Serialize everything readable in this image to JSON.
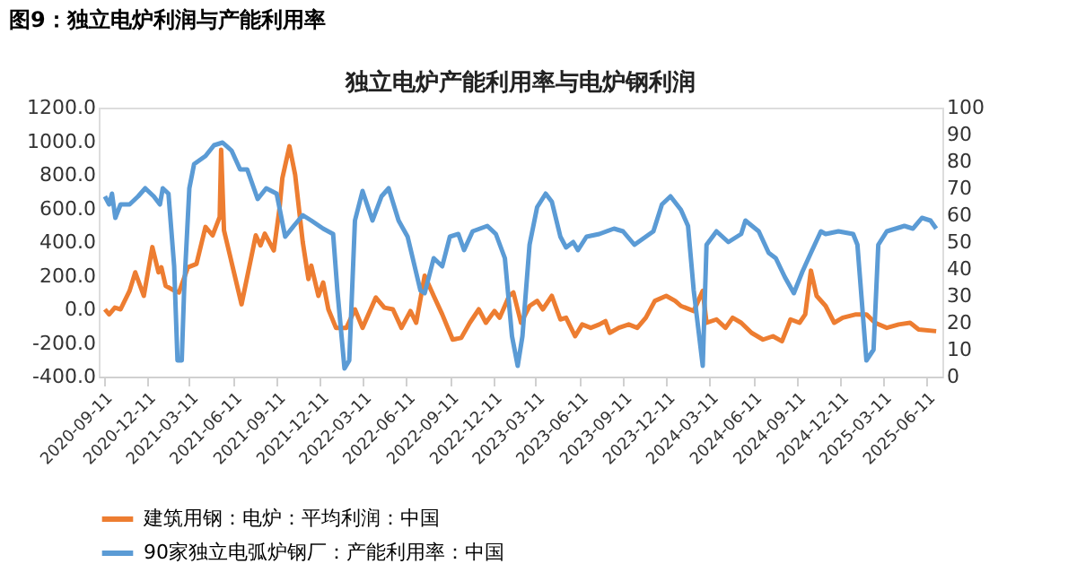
{
  "chart_data": {
    "type": "line",
    "title": "独立电炉产能利用率与电炉钢利润",
    "annotations": [
      "图9：独立电炉利润与产能利用率"
    ],
    "legend": "bottom",
    "marker": "none",
    "line_style": "solid",
    "xlim": [
      "2020-09-01",
      "2025-07-15"
    ],
    "xticks": [
      "2020-09-11",
      "2020-12-11",
      "2021-03-11",
      "2021-06-11",
      "2021-09-11",
      "2021-12-11",
      "2022-03-11",
      "2022-06-11",
      "2022-09-11",
      "2022-12-11",
      "2023-03-11",
      "2023-06-11",
      "2023-09-11",
      "2023-12-11",
      "2024-03-11",
      "2024-06-11",
      "2024-09-11",
      "2024-12-11",
      "2025-03-11",
      "2025-06-11"
    ],
    "ylim": [
      -400,
      1200
    ],
    "yticks": [
      {
        "value": -400,
        "label": "-400.0"
      },
      {
        "value": -200,
        "label": "-200.0"
      },
      {
        "value": 0,
        "label": "0.0"
      },
      {
        "value": 200,
        "label": "200.0"
      },
      {
        "value": 400,
        "label": "400.0"
      },
      {
        "value": 600,
        "label": "600.0"
      },
      {
        "value": 800,
        "label": "800.0"
      },
      {
        "value": 1000,
        "label": "1000.0"
      },
      {
        "value": 1200,
        "label": "1200.0"
      }
    ],
    "y2lim": [
      0,
      100
    ],
    "y2ticks": [
      0,
      10,
      20,
      30,
      40,
      50,
      60,
      70,
      80,
      90,
      100
    ],
    "series": [
      {
        "name": "建筑用钢：电炉：平均利润：中国",
        "color": "#ed7d31",
        "axis": "y",
        "x": [
          "2020-09-14",
          "2020-09-23",
          "2020-10-05",
          "2020-10-17",
          "2020-11-05",
          "2020-11-17",
          "2020-12-05",
          "2020-12-23",
          "2021-01-05",
          "2021-01-11",
          "2021-01-20",
          "2021-02-08",
          "2021-02-17",
          "2021-03-08",
          "2021-03-26",
          "2021-04-14",
          "2021-04-29",
          "2021-05-14",
          "2021-05-17",
          "2021-05-23",
          "2021-06-29",
          "2021-07-29",
          "2021-08-08",
          "2021-08-17",
          "2021-09-05",
          "2021-09-17",
          "2021-09-23",
          "2021-10-08",
          "2021-10-20",
          "2021-11-05",
          "2021-11-17",
          "2021-11-23",
          "2021-12-08",
          "2021-12-18",
          "2021-12-29",
          "2022-01-14",
          "2022-02-05",
          "2022-02-23",
          "2022-03-11",
          "2022-04-08",
          "2022-04-26",
          "2022-05-14",
          "2022-06-01",
          "2022-06-20",
          "2022-07-02",
          "2022-07-20",
          "2022-08-08",
          "2022-08-26",
          "2022-09-17",
          "2022-10-05",
          "2022-10-23",
          "2022-11-11",
          "2022-11-26",
          "2022-12-14",
          "2022-12-25",
          "2023-01-14",
          "2023-01-23",
          "2023-02-08",
          "2023-02-26",
          "2023-03-14",
          "2023-03-26",
          "2023-04-14",
          "2023-05-02",
          "2023-05-14",
          "2023-06-02",
          "2023-06-17",
          "2023-07-05",
          "2023-07-23",
          "2023-08-05",
          "2023-08-14",
          "2023-09-02",
          "2023-09-23",
          "2023-10-11",
          "2023-10-29",
          "2023-11-17",
          "2023-12-11",
          "2023-12-30",
          "2024-01-11",
          "2024-02-07",
          "2024-02-26",
          "2024-03-05",
          "2024-03-26",
          "2024-04-14",
          "2024-04-29",
          "2024-05-17",
          "2024-06-08",
          "2024-07-02",
          "2024-07-23",
          "2024-08-11",
          "2024-08-29",
          "2024-09-17",
          "2024-09-29",
          "2024-10-11",
          "2024-10-23",
          "2024-11-11",
          "2024-11-29",
          "2024-12-17",
          "2025-01-14",
          "2025-02-05",
          "2025-02-23",
          "2025-03-20",
          "2025-04-14",
          "2025-05-08",
          "2025-05-26",
          "2025-07-02"
        ],
        "values": [
          0,
          -30,
          10,
          0,
          110,
          220,
          80,
          370,
          220,
          250,
          140,
          110,
          100,
          250,
          270,
          490,
          440,
          550,
          950,
          470,
          30,
          440,
          380,
          450,
          350,
          600,
          780,
          970,
          800,
          400,
          180,
          260,
          80,
          160,
          0,
          -110,
          -110,
          0,
          -110,
          70,
          10,
          0,
          -110,
          -10,
          -80,
          200,
          80,
          -30,
          -180,
          -170,
          -80,
          0,
          -80,
          -10,
          -50,
          80,
          100,
          -80,
          20,
          50,
          0,
          80,
          -60,
          -50,
          -160,
          -90,
          -110,
          -90,
          -70,
          -140,
          -110,
          -90,
          -110,
          -50,
          50,
          80,
          50,
          20,
          -10,
          110,
          -80,
          -60,
          -110,
          -50,
          -80,
          -140,
          -180,
          -160,
          -190,
          -60,
          -80,
          -30,
          230,
          80,
          20,
          -80,
          -50,
          -30,
          -30,
          -80,
          -110,
          -90,
          -80,
          -120,
          -130
        ]
      },
      {
        "name": "90家独立电弧炉钢厂：产能利用率：中国",
        "color": "#5b9bd5",
        "axis": "y2",
        "x": [
          "2020-09-14",
          "2020-09-23",
          "2020-09-29",
          "2020-10-06",
          "2020-10-17",
          "2020-11-05",
          "2020-11-23",
          "2020-12-08",
          "2020-12-26",
          "2021-01-08",
          "2021-01-14",
          "2021-01-26",
          "2021-02-07",
          "2021-02-14",
          "2021-02-23",
          "2021-02-28",
          "2021-03-11",
          "2021-03-21",
          "2021-04-14",
          "2021-05-02",
          "2021-05-20",
          "2021-06-08",
          "2021-06-26",
          "2021-07-11",
          "2021-08-02",
          "2021-08-20",
          "2021-09-11",
          "2021-09-29",
          "2021-10-17",
          "2021-11-05",
          "2021-11-23",
          "2021-12-18",
          "2022-01-08",
          "2022-01-17",
          "2022-02-01",
          "2022-02-11",
          "2022-02-23",
          "2022-03-11",
          "2022-04-01",
          "2022-04-20",
          "2022-05-05",
          "2022-05-26",
          "2022-06-14",
          "2022-07-11",
          "2022-07-20",
          "2022-08-08",
          "2022-08-26",
          "2022-09-11",
          "2022-09-29",
          "2022-10-11",
          "2022-10-29",
          "2022-11-29",
          "2022-12-17",
          "2023-01-05",
          "2023-01-20",
          "2023-02-01",
          "2023-02-11",
          "2023-02-26",
          "2023-03-14",
          "2023-04-01",
          "2023-04-14",
          "2023-05-02",
          "2023-05-14",
          "2023-05-29",
          "2023-06-08",
          "2023-06-26",
          "2023-07-23",
          "2023-08-23",
          "2023-09-11",
          "2023-10-05",
          "2023-11-14",
          "2023-12-02",
          "2023-12-20",
          "2024-01-11",
          "2024-01-26",
          "2024-02-07",
          "2024-02-26",
          "2024-03-05",
          "2024-03-26",
          "2024-04-20",
          "2024-05-17",
          "2024-05-26",
          "2024-06-23",
          "2024-07-14",
          "2024-07-29",
          "2024-08-17",
          "2024-09-05",
          "2024-09-23",
          "2024-10-11",
          "2024-11-01",
          "2024-11-11",
          "2024-12-08",
          "2025-01-08",
          "2025-01-17",
          "2025-02-05",
          "2025-02-20",
          "2025-03-02",
          "2025-03-20",
          "2025-04-26",
          "2025-05-14",
          "2025-06-02",
          "2025-06-20",
          "2025-07-02"
        ],
        "values": [
          67,
          64,
          68,
          59,
          64,
          64,
          67,
          70,
          67,
          64,
          70,
          68,
          41,
          6,
          6,
          32,
          70,
          79,
          82,
          86,
          87,
          84,
          77,
          77,
          66,
          70,
          68,
          52,
          56,
          60,
          58,
          55,
          53,
          32,
          3,
          6,
          58,
          69,
          58,
          67,
          70,
          58,
          52,
          32,
          31,
          44,
          41,
          52,
          53,
          47,
          54,
          56,
          53,
          44,
          15,
          4,
          15,
          49,
          63,
          68,
          65,
          52,
          48,
          50,
          47,
          52,
          53,
          55,
          54,
          49,
          54,
          64,
          67,
          62,
          56,
          32,
          4,
          49,
          54,
          50,
          53,
          58,
          54,
          46,
          44,
          37,
          31,
          39,
          46,
          54,
          53,
          54,
          53,
          49,
          6,
          10,
          49,
          54,
          56,
          55,
          59,
          58,
          55
        ]
      }
    ]
  }
}
